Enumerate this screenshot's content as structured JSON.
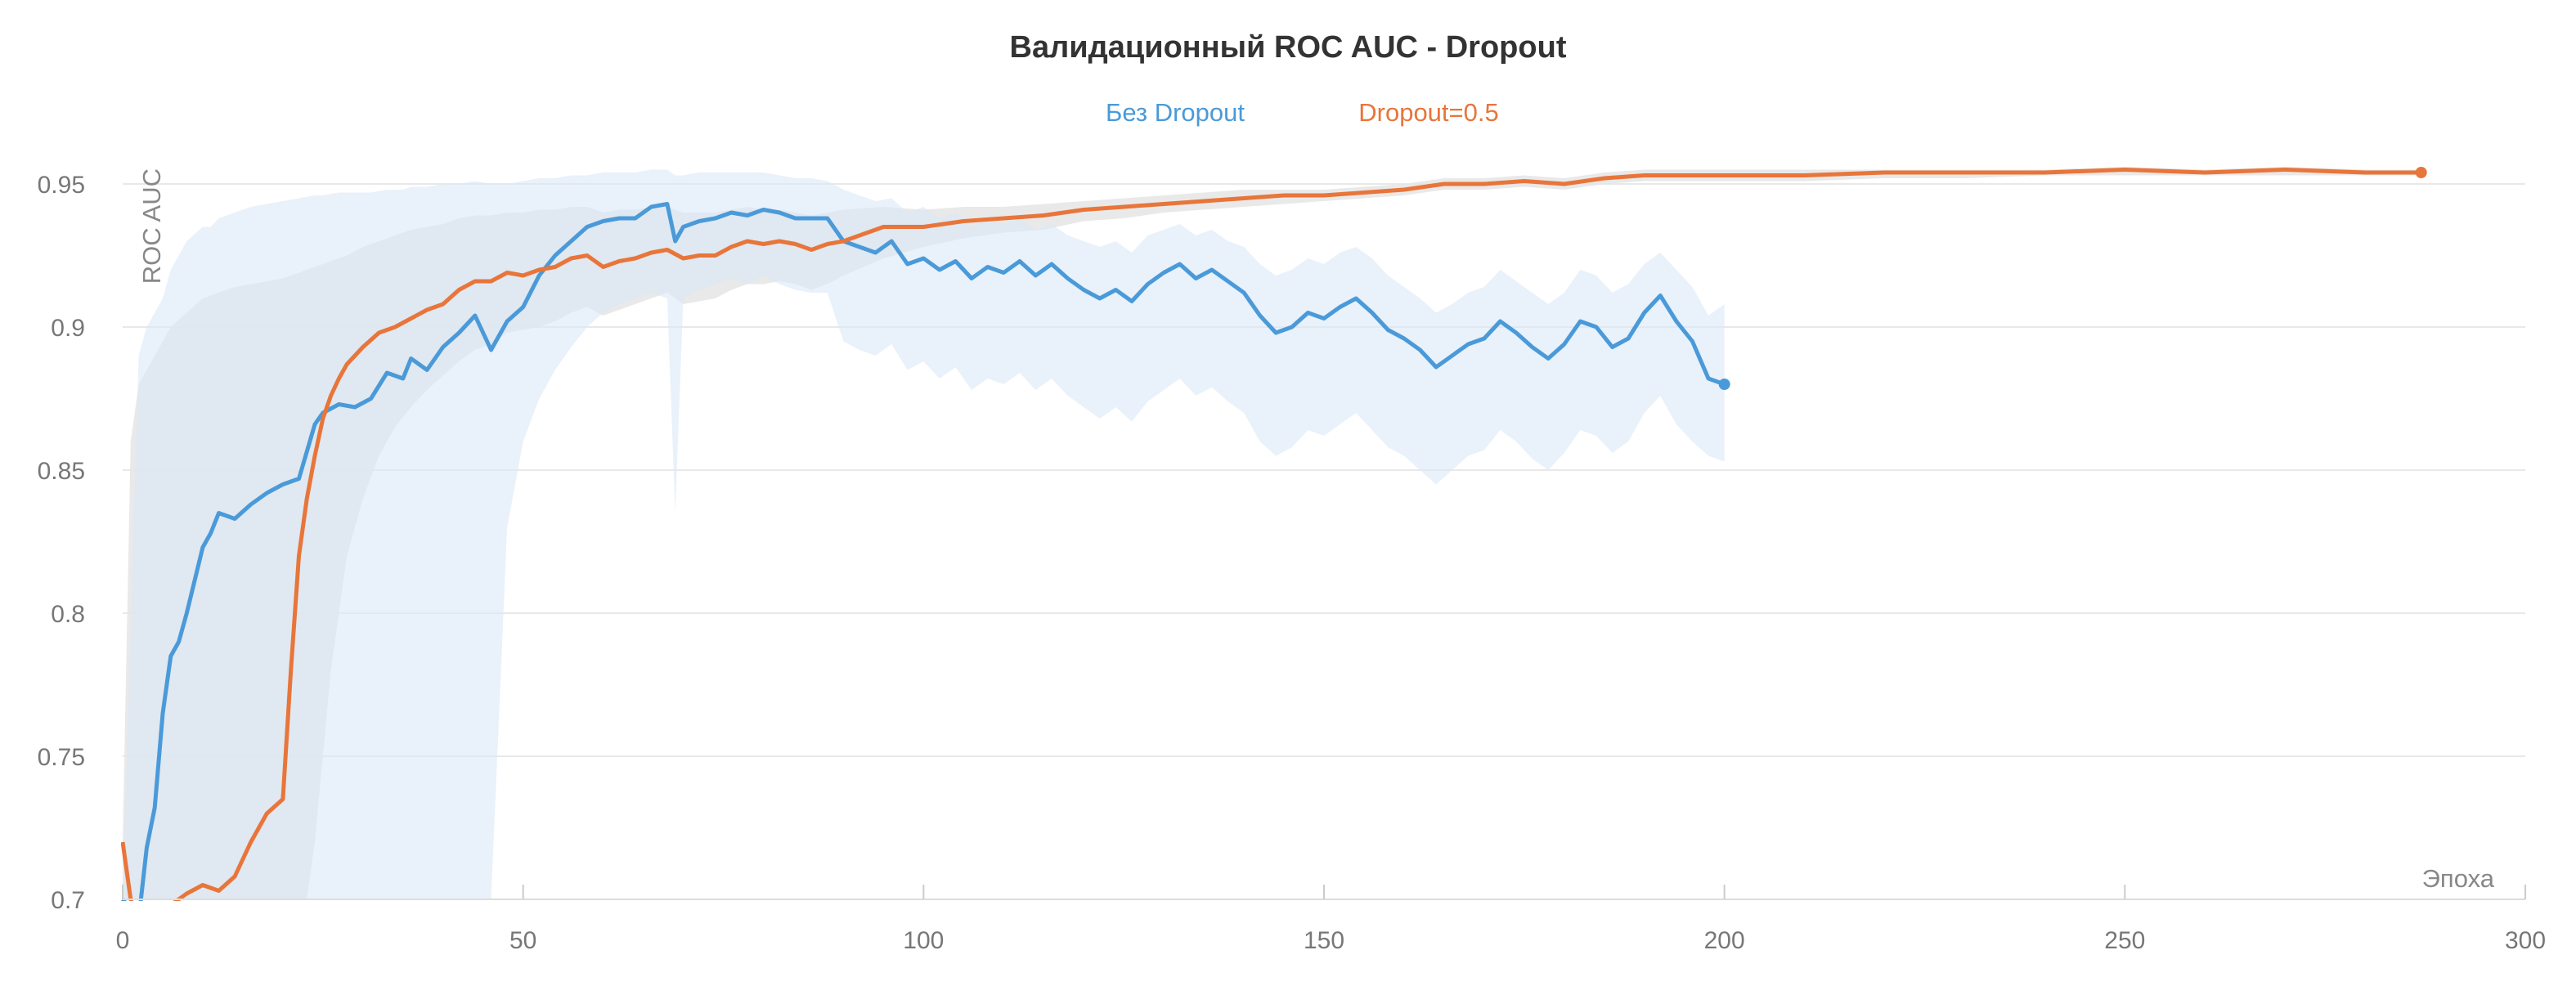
{
  "chart_data": {
    "type": "line",
    "title": "Валидационный ROC AUC - Dropout",
    "xlabel": "Эпоха",
    "ylabel": "ROC AUC",
    "xlim": [
      0,
      300
    ],
    "ylim": [
      0.7,
      0.96
    ],
    "x_ticks": [
      0,
      50,
      100,
      150,
      200,
      250,
      300
    ],
    "y_ticks": [
      0.7,
      0.75,
      0.8,
      0.85,
      0.9,
      0.95
    ],
    "grid": true,
    "legend": {
      "placement": "top-center"
    },
    "series": [
      {
        "name": "Без Dropout",
        "color": "#4a9ad9",
        "band_color": "#dbe8f7",
        "x": [
          0,
          2,
          3,
          4,
          5,
          6,
          7,
          8,
          10,
          11,
          12,
          14,
          16,
          18,
          20,
          22,
          24,
          25,
          27,
          29,
          31,
          33,
          35,
          36,
          38,
          40,
          42,
          44,
          46,
          48,
          50,
          52,
          54,
          56,
          58,
          60,
          62,
          64,
          66,
          68,
          69,
          70,
          72,
          74,
          76,
          78,
          80,
          82,
          84,
          86,
          88,
          90,
          92,
          94,
          96,
          98,
          100,
          102,
          104,
          106,
          108,
          110,
          112,
          114,
          116,
          118,
          120,
          122,
          124,
          126,
          128,
          130,
          132,
          134,
          136,
          138,
          140,
          142,
          144,
          146,
          148,
          150,
          152,
          154,
          156,
          158,
          160,
          162,
          164,
          166,
          168,
          170,
          172,
          174,
          176,
          178,
          180,
          182,
          184,
          186,
          188,
          190,
          192,
          194,
          196,
          198,
          200
        ],
        "values": [
          0.7,
          0.693,
          0.718,
          0.732,
          0.765,
          0.785,
          0.79,
          0.8,
          0.823,
          0.828,
          0.835,
          0.833,
          0.838,
          0.842,
          0.845,
          0.847,
          0.866,
          0.87,
          0.873,
          0.872,
          0.875,
          0.884,
          0.882,
          0.889,
          0.885,
          0.893,
          0.898,
          0.904,
          0.892,
          0.902,
          0.907,
          0.918,
          0.925,
          0.93,
          0.935,
          0.937,
          0.938,
          0.938,
          0.942,
          0.943,
          0.93,
          0.935,
          0.937,
          0.938,
          0.94,
          0.939,
          0.941,
          0.94,
          0.938,
          0.938,
          0.938,
          0.93,
          0.928,
          0.926,
          0.93,
          0.922,
          0.924,
          0.92,
          0.923,
          0.917,
          0.921,
          0.919,
          0.923,
          0.918,
          0.922,
          0.917,
          0.913,
          0.91,
          0.913,
          0.909,
          0.915,
          0.919,
          0.922,
          0.917,
          0.92,
          0.916,
          0.912,
          0.904,
          0.898,
          0.9,
          0.905,
          0.903,
          0.907,
          0.91,
          0.905,
          0.899,
          0.896,
          0.892,
          0.886,
          0.89,
          0.894,
          0.896,
          0.902,
          0.898,
          0.893,
          0.889,
          0.894,
          0.902,
          0.9,
          0.893,
          0.896,
          0.905,
          0.911,
          0.902,
          0.895,
          0.882,
          0.88
        ],
        "upper": [
          0.7,
          0.89,
          0.9,
          0.905,
          0.91,
          0.92,
          0.925,
          0.93,
          0.935,
          0.935,
          0.938,
          0.94,
          0.942,
          0.943,
          0.944,
          0.945,
          0.946,
          0.946,
          0.947,
          0.947,
          0.947,
          0.948,
          0.948,
          0.949,
          0.949,
          0.95,
          0.95,
          0.951,
          0.95,
          0.95,
          0.951,
          0.952,
          0.952,
          0.953,
          0.953,
          0.954,
          0.954,
          0.954,
          0.955,
          0.955,
          0.953,
          0.953,
          0.954,
          0.954,
          0.954,
          0.954,
          0.954,
          0.953,
          0.952,
          0.952,
          0.951,
          0.948,
          0.946,
          0.944,
          0.945,
          0.94,
          0.942,
          0.938,
          0.94,
          0.935,
          0.938,
          0.936,
          0.938,
          0.934,
          0.936,
          0.932,
          0.93,
          0.928,
          0.93,
          0.926,
          0.932,
          0.934,
          0.936,
          0.932,
          0.934,
          0.93,
          0.928,
          0.922,
          0.918,
          0.92,
          0.924,
          0.922,
          0.926,
          0.928,
          0.924,
          0.918,
          0.914,
          0.91,
          0.905,
          0.908,
          0.912,
          0.914,
          0.92,
          0.916,
          0.912,
          0.908,
          0.912,
          0.92,
          0.918,
          0.912,
          0.915,
          0.922,
          0.926,
          0.92,
          0.914,
          0.904,
          0.908
        ],
        "lower": [
          0.7,
          0.7,
          0.7,
          0.7,
          0.7,
          0.7,
          0.7,
          0.7,
          0.7,
          0.7,
          0.7,
          0.7,
          0.7,
          0.7,
          0.7,
          0.7,
          0.7,
          0.7,
          0.7,
          0.7,
          0.7,
          0.7,
          0.7,
          0.7,
          0.7,
          0.7,
          0.7,
          0.7,
          0.7,
          0.83,
          0.86,
          0.875,
          0.885,
          0.893,
          0.9,
          0.905,
          0.908,
          0.91,
          0.912,
          0.91,
          0.835,
          0.91,
          0.913,
          0.915,
          0.917,
          0.915,
          0.918,
          0.915,
          0.913,
          0.912,
          0.912,
          0.895,
          0.892,
          0.89,
          0.894,
          0.885,
          0.888,
          0.882,
          0.886,
          0.878,
          0.882,
          0.88,
          0.884,
          0.878,
          0.882,
          0.876,
          0.872,
          0.868,
          0.872,
          0.867,
          0.874,
          0.878,
          0.882,
          0.876,
          0.879,
          0.874,
          0.87,
          0.86,
          0.855,
          0.858,
          0.864,
          0.862,
          0.866,
          0.87,
          0.864,
          0.858,
          0.855,
          0.85,
          0.845,
          0.85,
          0.855,
          0.857,
          0.864,
          0.86,
          0.854,
          0.85,
          0.856,
          0.864,
          0.862,
          0.856,
          0.86,
          0.87,
          0.876,
          0.866,
          0.86,
          0.855,
          0.853
        ]
      },
      {
        "name": "Dropout=0.5",
        "color": "#e8753a",
        "band_color": "#e5e5e5",
        "x": [
          0,
          1,
          2,
          4,
          6,
          8,
          10,
          12,
          14,
          16,
          18,
          20,
          21,
          22,
          23,
          24,
          25,
          26,
          27,
          28,
          30,
          32,
          34,
          36,
          38,
          40,
          42,
          44,
          46,
          48,
          50,
          52,
          54,
          56,
          58,
          60,
          62,
          64,
          66,
          68,
          70,
          72,
          74,
          76,
          78,
          80,
          82,
          84,
          86,
          88,
          90,
          95,
          100,
          105,
          110,
          115,
          120,
          125,
          130,
          135,
          140,
          145,
          150,
          155,
          160,
          165,
          170,
          175,
          180,
          185,
          190,
          195,
          200,
          210,
          220,
          230,
          240,
          250,
          260,
          270,
          280,
          287
        ],
        "values": [
          0.72,
          0.7,
          0.69,
          0.695,
          0.698,
          0.702,
          0.705,
          0.703,
          0.708,
          0.72,
          0.73,
          0.735,
          0.78,
          0.82,
          0.84,
          0.855,
          0.868,
          0.876,
          0.882,
          0.887,
          0.893,
          0.898,
          0.9,
          0.903,
          0.906,
          0.908,
          0.913,
          0.916,
          0.916,
          0.919,
          0.918,
          0.92,
          0.921,
          0.924,
          0.925,
          0.921,
          0.923,
          0.924,
          0.926,
          0.927,
          0.924,
          0.925,
          0.925,
          0.928,
          0.93,
          0.929,
          0.93,
          0.929,
          0.927,
          0.929,
          0.93,
          0.935,
          0.935,
          0.937,
          0.938,
          0.939,
          0.941,
          0.942,
          0.943,
          0.944,
          0.945,
          0.946,
          0.946,
          0.947,
          0.948,
          0.95,
          0.95,
          0.951,
          0.95,
          0.952,
          0.953,
          0.953,
          0.953,
          0.953,
          0.954,
          0.954,
          0.954,
          0.955,
          0.954,
          0.955,
          0.954,
          0.954
        ],
        "upper": [
          0.72,
          0.86,
          0.88,
          0.89,
          0.9,
          0.905,
          0.91,
          0.912,
          0.914,
          0.915,
          0.916,
          0.917,
          0.918,
          0.919,
          0.92,
          0.921,
          0.922,
          0.923,
          0.924,
          0.925,
          0.928,
          0.93,
          0.932,
          0.934,
          0.935,
          0.936,
          0.938,
          0.939,
          0.939,
          0.94,
          0.94,
          0.941,
          0.941,
          0.942,
          0.942,
          0.94,
          0.941,
          0.941,
          0.942,
          0.942,
          0.94,
          0.94,
          0.94,
          0.941,
          0.942,
          0.941,
          0.941,
          0.94,
          0.939,
          0.94,
          0.941,
          0.942,
          0.941,
          0.942,
          0.942,
          0.943,
          0.944,
          0.945,
          0.946,
          0.947,
          0.948,
          0.948,
          0.948,
          0.949,
          0.95,
          0.952,
          0.952,
          0.953,
          0.952,
          0.954,
          0.955,
          0.955,
          0.955,
          0.955,
          0.955,
          0.955,
          0.955,
          0.956,
          0.955,
          0.956,
          0.955,
          0.955
        ],
        "lower": [
          0.7,
          0.7,
          0.7,
          0.7,
          0.7,
          0.7,
          0.7,
          0.7,
          0.7,
          0.7,
          0.7,
          0.7,
          0.7,
          0.7,
          0.7,
          0.72,
          0.75,
          0.78,
          0.8,
          0.82,
          0.84,
          0.855,
          0.865,
          0.872,
          0.878,
          0.883,
          0.888,
          0.892,
          0.894,
          0.898,
          0.899,
          0.9,
          0.902,
          0.905,
          0.907,
          0.904,
          0.906,
          0.908,
          0.91,
          0.912,
          0.908,
          0.909,
          0.91,
          0.913,
          0.915,
          0.915,
          0.916,
          0.915,
          0.913,
          0.915,
          0.918,
          0.924,
          0.928,
          0.931,
          0.933,
          0.934,
          0.937,
          0.938,
          0.94,
          0.941,
          0.942,
          0.943,
          0.944,
          0.945,
          0.946,
          0.948,
          0.948,
          0.949,
          0.948,
          0.95,
          0.951,
          0.951,
          0.951,
          0.951,
          0.952,
          0.952,
          0.953,
          0.953,
          0.953,
          0.953,
          0.953,
          0.953
        ]
      }
    ]
  }
}
